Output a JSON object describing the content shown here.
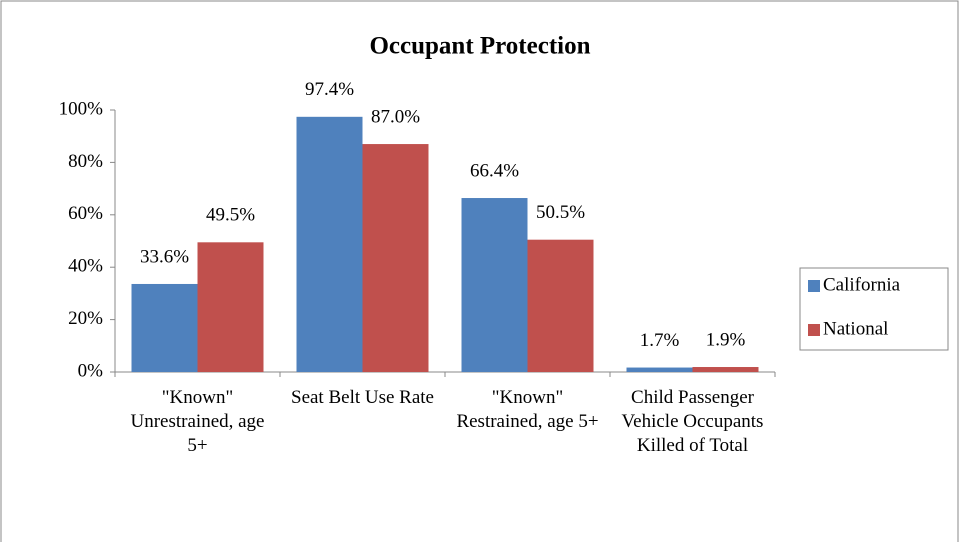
{
  "chart_data": {
    "type": "bar",
    "title": "Occupant Protection",
    "categories": [
      "\"Known\" Unrestrained, age 5+",
      "Seat Belt Use Rate",
      "\"Known\" Restrained, age 5+",
      "Child Passenger Vehicle Occupants Killed of Total"
    ],
    "series": [
      {
        "name": "California",
        "color": "#4F81BD",
        "values": [
          33.6,
          97.4,
          66.4,
          1.7
        ],
        "value_labels": [
          "33.6%",
          "97.4%",
          "66.4%",
          "1.7%"
        ]
      },
      {
        "name": "National",
        "color": "#C0504D",
        "values": [
          49.5,
          87.0,
          50.5,
          1.9
        ],
        "value_labels": [
          "49.5%",
          "87.0%",
          "50.5%",
          "1.9%"
        ]
      }
    ],
    "ylim": [
      0,
      100
    ],
    "yticks": [
      {
        "value": 0,
        "label": "0%"
      },
      {
        "value": 20,
        "label": "20%"
      },
      {
        "value": 40,
        "label": "40%"
      },
      {
        "value": 60,
        "label": "60%"
      },
      {
        "value": 80,
        "label": "80%"
      },
      {
        "value": 100,
        "label": "100%"
      }
    ],
    "grid": false,
    "legend": "right"
  }
}
